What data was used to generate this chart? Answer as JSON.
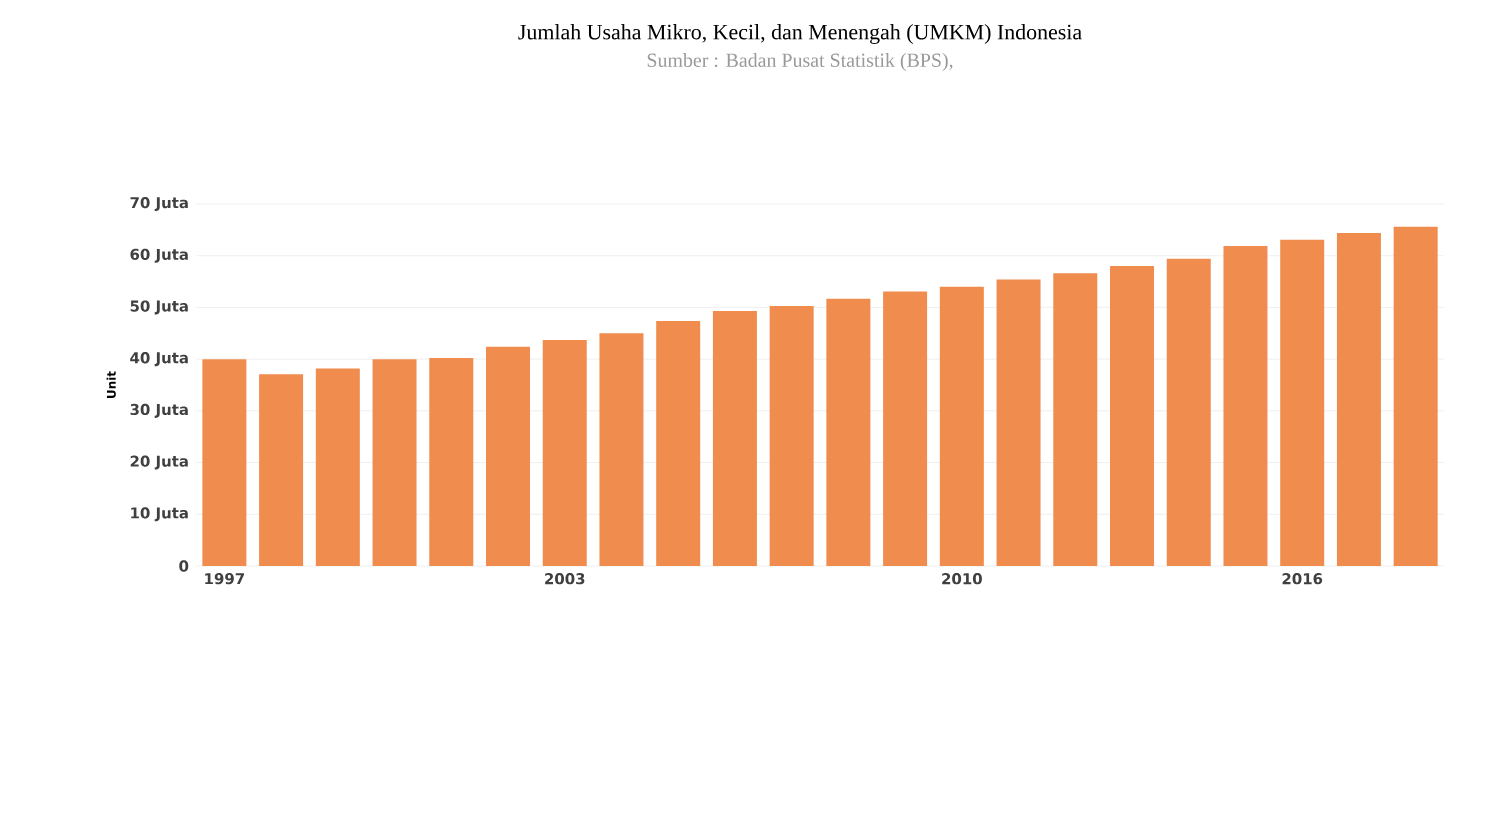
{
  "chart_data": {
    "type": "bar",
    "title": "Jumlah Usaha Mikro, Kecil, dan Menengah (UMKM) Indonesia",
    "subtitle": "Sumber : Badan Pusat Statistik (BPS),",
    "ylabel": "Unit",
    "categories": [
      "1997",
      null,
      null,
      null,
      null,
      null,
      "2003",
      null,
      null,
      null,
      null,
      null,
      null,
      "2010",
      null,
      null,
      null,
      null,
      null,
      "2016",
      null,
      null
    ],
    "values": [
      40.0,
      37.1,
      38.2,
      40.0,
      40.2,
      42.4,
      43.7,
      45.0,
      47.4,
      49.3,
      50.3,
      51.7,
      53.1,
      54.0,
      55.4,
      56.6,
      58.0,
      59.4,
      61.9,
      63.1,
      64.4,
      65.6
    ],
    "color": "#f08c4e",
    "ylim": [
      0,
      70
    ],
    "yticks": [
      0,
      {
        "value": 10,
        "label": "10 Juta"
      },
      {
        "value": 20,
        "label": "20 Juta"
      },
      {
        "value": 30,
        "label": "30 Juta"
      },
      {
        "value": 40,
        "label": "40 Juta"
      },
      {
        "value": 50,
        "label": "50 Juta"
      },
      {
        "value": 60,
        "label": "60 Juta"
      },
      {
        "value": 70,
        "label": "70 Juta"
      }
    ],
    "grid": "y"
  }
}
